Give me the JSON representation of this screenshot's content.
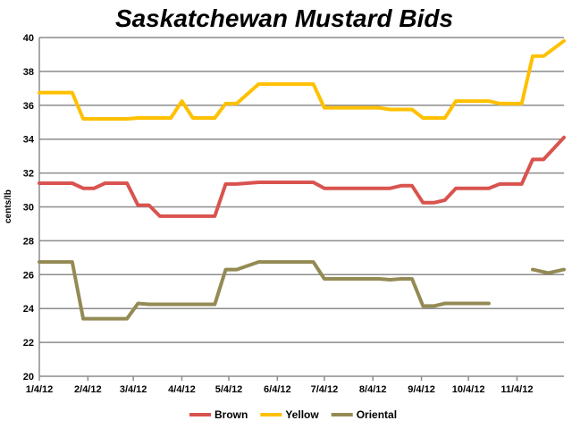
{
  "chart_data": {
    "type": "line",
    "title": "Saskatchewan Mustard Bids",
    "ylabel": "cents/lb",
    "xlabel": "",
    "ylim": [
      20,
      40
    ],
    "yticks": [
      20,
      22,
      24,
      26,
      28,
      30,
      32,
      34,
      36,
      38,
      40
    ],
    "xlim": [
      "2012-01-04",
      "2012-12-04"
    ],
    "xticks": [
      "2012-01-04",
      "2012-02-04",
      "2012-03-04",
      "2012-04-04",
      "2012-05-04",
      "2012-06-04",
      "2012-07-04",
      "2012-08-04",
      "2012-09-04",
      "2012-10-04",
      "2012-11-04"
    ],
    "xtick_labels": [
      "1/4/12",
      "2/4/12",
      "3/4/12",
      "4/4/12",
      "5/4/12",
      "6/4/12",
      "7/4/12",
      "8/4/12",
      "9/4/12",
      "10/4/12",
      "11/4/12"
    ],
    "grid": true,
    "legend_position": "bottom",
    "series": [
      {
        "name": "Brown",
        "color": "#d9534f",
        "points": [
          [
            "2012-01-04",
            31.4
          ],
          [
            "2012-01-25",
            31.4
          ],
          [
            "2012-02-01",
            31.1
          ],
          [
            "2012-02-08",
            31.1
          ],
          [
            "2012-02-15",
            31.4
          ],
          [
            "2012-02-29",
            31.4
          ],
          [
            "2012-03-07",
            30.1
          ],
          [
            "2012-03-14",
            30.1
          ],
          [
            "2012-03-21",
            29.45
          ],
          [
            "2012-04-25",
            29.45
          ],
          [
            "2012-05-02",
            31.35
          ],
          [
            "2012-05-09",
            31.35
          ],
          [
            "2012-05-23",
            31.45
          ],
          [
            "2012-06-27",
            31.45
          ],
          [
            "2012-07-04",
            31.1
          ],
          [
            "2012-08-15",
            31.1
          ],
          [
            "2012-08-22",
            31.25
          ],
          [
            "2012-08-29",
            31.25
          ],
          [
            "2012-09-05",
            30.25
          ],
          [
            "2012-09-12",
            30.25
          ],
          [
            "2012-09-19",
            30.4
          ],
          [
            "2012-09-26",
            31.1
          ],
          [
            "2012-10-17",
            31.1
          ],
          [
            "2012-10-24",
            31.35
          ],
          [
            "2012-11-07",
            31.35
          ],
          [
            "2012-11-14",
            32.8
          ],
          [
            "2012-11-21",
            32.8
          ],
          [
            "2012-12-04",
            34.1
          ]
        ]
      },
      {
        "name": "Yellow",
        "color": "#ffc000",
        "points": [
          [
            "2012-01-04",
            36.75
          ],
          [
            "2012-01-25",
            36.75
          ],
          [
            "2012-02-01",
            35.2
          ],
          [
            "2012-02-29",
            35.2
          ],
          [
            "2012-03-07",
            35.25
          ],
          [
            "2012-03-28",
            35.25
          ],
          [
            "2012-04-04",
            36.25
          ],
          [
            "2012-04-11",
            35.25
          ],
          [
            "2012-04-25",
            35.25
          ],
          [
            "2012-05-02",
            36.1
          ],
          [
            "2012-05-09",
            36.1
          ],
          [
            "2012-05-23",
            37.25
          ],
          [
            "2012-06-27",
            37.25
          ],
          [
            "2012-07-04",
            35.85
          ],
          [
            "2012-08-08",
            35.85
          ],
          [
            "2012-08-15",
            35.75
          ],
          [
            "2012-08-29",
            35.75
          ],
          [
            "2012-09-05",
            35.25
          ],
          [
            "2012-09-19",
            35.25
          ],
          [
            "2012-09-26",
            36.25
          ],
          [
            "2012-10-17",
            36.25
          ],
          [
            "2012-10-24",
            36.1
          ],
          [
            "2012-11-07",
            36.1
          ],
          [
            "2012-11-14",
            38.9
          ],
          [
            "2012-11-21",
            38.9
          ],
          [
            "2012-12-04",
            39.8
          ]
        ]
      },
      {
        "name": "Oriental",
        "color": "#948a54",
        "points": [
          [
            "2012-01-04",
            26.75
          ],
          [
            "2012-01-25",
            26.75
          ],
          [
            "2012-02-01",
            23.4
          ],
          [
            "2012-02-29",
            23.4
          ],
          [
            "2012-03-07",
            24.3
          ],
          [
            "2012-03-14",
            24.25
          ],
          [
            "2012-04-25",
            24.25
          ],
          [
            "2012-05-02",
            26.3
          ],
          [
            "2012-05-09",
            26.3
          ],
          [
            "2012-05-23",
            26.75
          ],
          [
            "2012-06-27",
            26.75
          ],
          [
            "2012-07-04",
            25.75
          ],
          [
            "2012-08-08",
            25.75
          ],
          [
            "2012-08-15",
            25.7
          ],
          [
            "2012-08-22",
            25.75
          ],
          [
            "2012-08-29",
            25.75
          ],
          [
            "2012-09-05",
            24.15
          ],
          [
            "2012-09-12",
            24.15
          ],
          [
            "2012-09-19",
            24.3
          ],
          [
            "2012-10-10",
            24.3
          ],
          [
            "2012-10-17",
            24.3
          ],
          null,
          [
            "2012-11-14",
            26.3
          ],
          [
            "2012-11-24",
            26.1
          ],
          [
            "2012-12-04",
            26.3
          ]
        ]
      }
    ]
  }
}
